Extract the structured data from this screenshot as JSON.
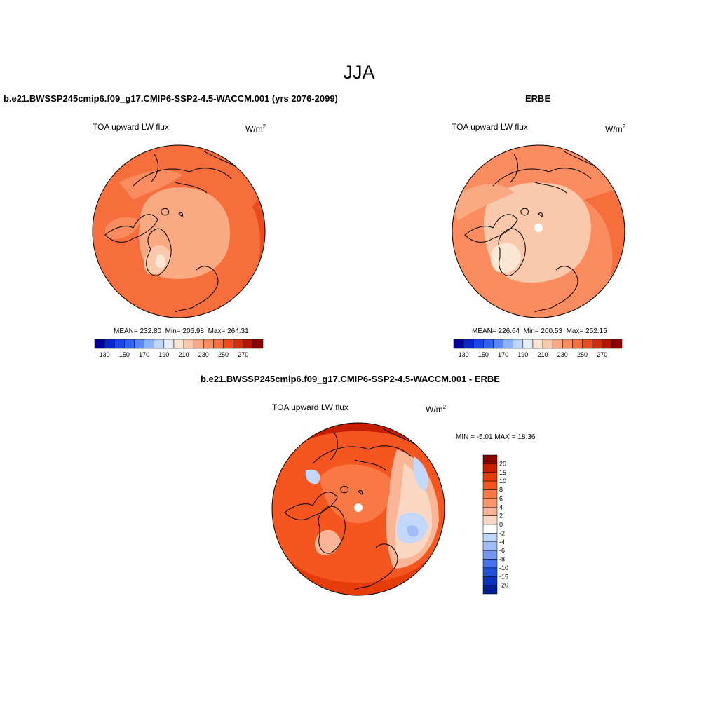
{
  "season": "JJA",
  "panels": {
    "model": {
      "title": "b.e21.BWSSP245cmip6.f09_g17.CMIP6-SSP2-4.5-WACCM.001 (yrs 2076-2099)",
      "variable": "TOA upward LW flux",
      "units": "W/m",
      "units_exp": "2",
      "mean": "MEAN= 232.80",
      "min": "Min= 206.98",
      "max": "Max= 264.31"
    },
    "obs": {
      "title": "ERBE",
      "variable": "TOA upward LW flux",
      "units": "W/m",
      "units_exp": "2",
      "mean": "MEAN= 226.64",
      "min": "Min= 200.53",
      "max": "Max= 252.15"
    },
    "diff": {
      "title": "b.e21.BWSSP245cmip6.f09_g17.CMIP6-SSP2-4.5-WACCM.001 - ERBE",
      "variable": "TOA upward LW flux",
      "units": "W/m",
      "units_exp": "2",
      "minmax": "MIN =  -5.01 MAX =  18.36"
    }
  },
  "colorbar_abs": {
    "labels": [
      "130",
      "150",
      "170",
      "190",
      "210",
      "230",
      "250",
      "270"
    ],
    "colors": [
      "#000096",
      "#0a28c8",
      "#1e46e6",
      "#3264f0",
      "#5a87f5",
      "#8cb4fa",
      "#bed7fa",
      "#e6f0fa",
      "#fae6d2",
      "#fac8aa",
      "#faaa82",
      "#fa8c5f",
      "#f56e3c",
      "#eb4b1e",
      "#d22d0a",
      "#b41400",
      "#8c0000"
    ]
  },
  "colorbar_diff": {
    "labels": [
      "20",
      "15",
      "10",
      "8",
      "6",
      "4",
      "2",
      "0",
      "-2",
      "-4",
      "-6",
      "-8",
      "-10",
      "-15",
      "-20"
    ],
    "colors": [
      "#8c0000",
      "#c81e00",
      "#e63c0a",
      "#f5551e",
      "#fa7846",
      "#fa966e",
      "#fab496",
      "#fad7c3",
      "#ffffff",
      "#c3d7fa",
      "#a0bef5",
      "#7396f0",
      "#4673eb",
      "#1e50dc",
      "#0a32be",
      "#001e96"
    ]
  }
}
